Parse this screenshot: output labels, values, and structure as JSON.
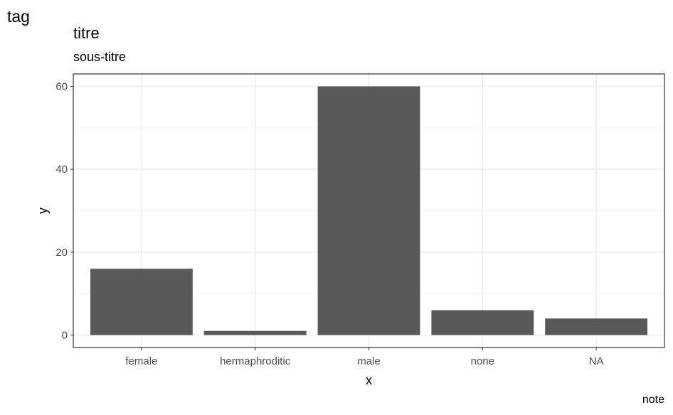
{
  "chart_data": {
    "type": "bar",
    "tag": "tag",
    "title": "titre",
    "subtitle": "sous-titre",
    "caption": "note",
    "xlabel": "x",
    "ylabel": "y",
    "categories": [
      "female",
      "hermaphroditic",
      "male",
      "none",
      "NA"
    ],
    "values": [
      16,
      1,
      60,
      6,
      4
    ],
    "ylim": [
      -3,
      63
    ],
    "yticks": [
      0,
      20,
      40,
      60
    ],
    "bar_color": "#595959",
    "grid": true,
    "theme": "bw"
  }
}
